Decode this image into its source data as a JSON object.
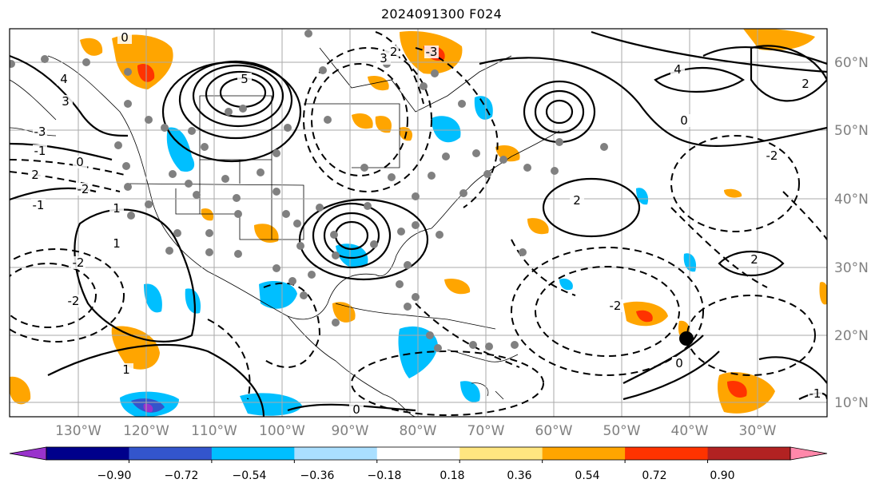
{
  "title": "2024091300 F024",
  "map": {
    "lon_labels": [
      "130°W",
      "120°W",
      "110°W",
      "100°W",
      "90°W",
      "80°W",
      "70°W",
      "60°W",
      "50°W",
      "40°W",
      "30°W"
    ],
    "lat_labels": [
      "60°N",
      "50°N",
      "40°N",
      "30°N",
      "20°N",
      "10°N"
    ],
    "contour_labels": [
      "-2",
      "-3",
      "-1",
      "0",
      "1",
      "2",
      "3",
      "4",
      "5",
      "-2",
      "0",
      "1",
      "-1",
      "2",
      "0",
      "-2",
      "2",
      "-2",
      "4",
      "0",
      "-2",
      "1",
      "-1",
      "0",
      "2",
      "-2",
      "3",
      "-3"
    ]
  },
  "colorbar": {
    "ticks": [
      "−0.90",
      "−0.72",
      "−0.54",
      "−0.36",
      "−0.18",
      "0.18",
      "0.36",
      "0.54",
      "0.72",
      "0.90"
    ],
    "colors": [
      "#9933cc",
      "#00008b",
      "#3355cc",
      "#00bfff",
      "#aadfff",
      "#ffffff",
      "#ffe680",
      "#ffa500",
      "#ff3300",
      "#b22222",
      "#ff88aa"
    ]
  }
}
